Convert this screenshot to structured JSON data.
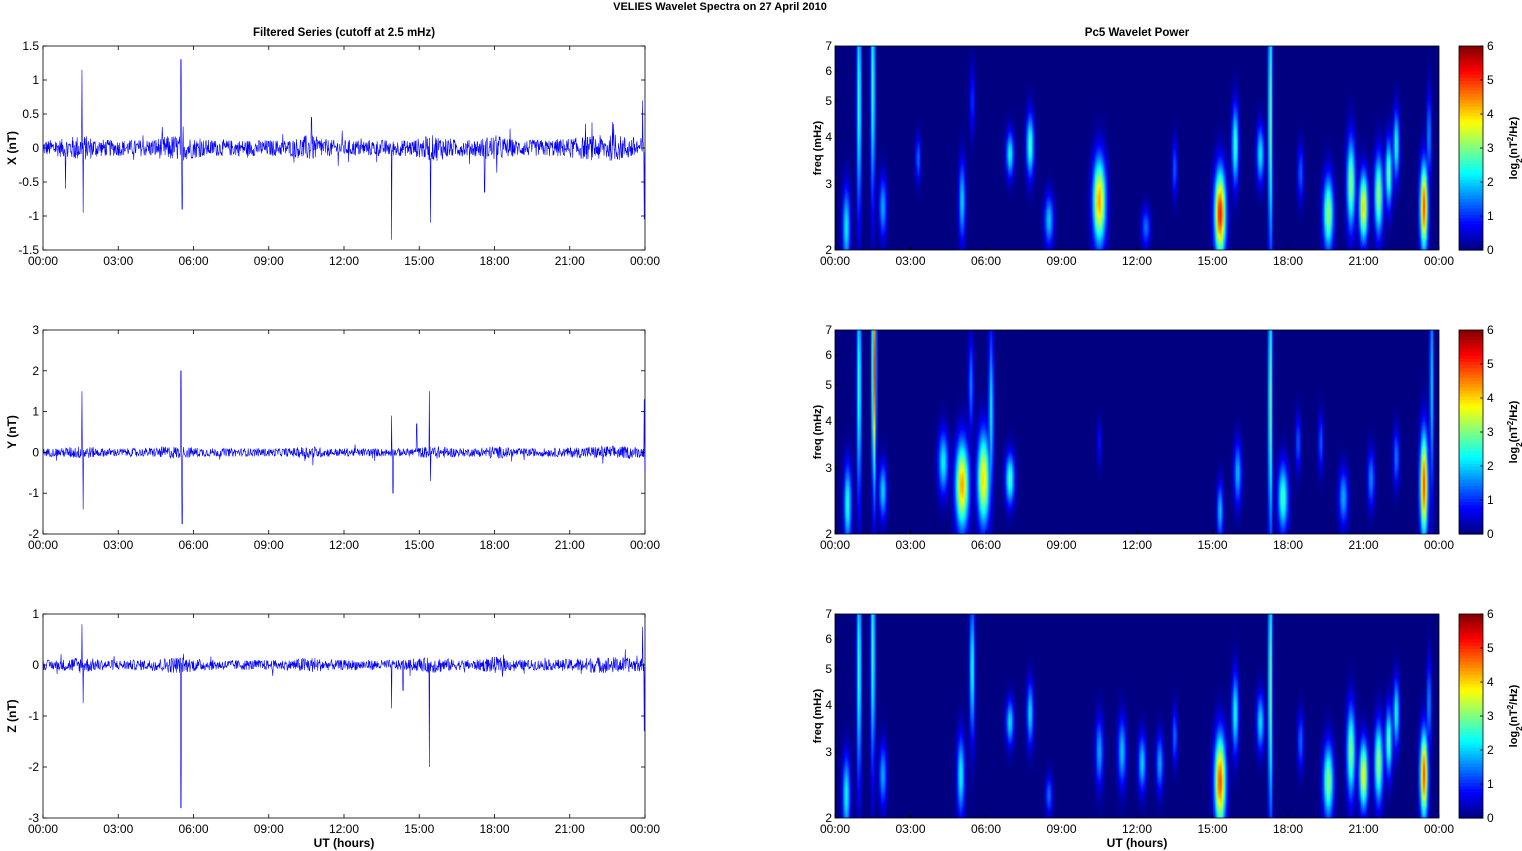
{
  "figure": {
    "title": "VELIES Wavelet Spectra on 27 April     2010"
  },
  "left_column": {
    "title": "Filtered Series (cutoff at 2.5 mHz)",
    "xlabel": "UT (hours)"
  },
  "right_column": {
    "title": "Pc5 Wavelet Power",
    "xlabel": "UT (hours)",
    "ylabel": "freq (mHz)",
    "colorbar_label": "log2(nT2/Hz)"
  },
  "chart_data": [
    {
      "type": "line",
      "name": "X",
      "ylabel": "X (nT)",
      "ylim": [
        -1.5,
        1.5
      ],
      "yticks": [
        "1.5",
        "1",
        "0.5",
        "0",
        "-0.5",
        "-1",
        "-1.5"
      ],
      "xticks": [
        "00:00",
        "03:00",
        "06:00",
        "09:00",
        "12:00",
        "15:00",
        "18:00",
        "21:00",
        "00:00"
      ],
      "xlim_hours": [
        0,
        24
      ],
      "color": "#0000ff",
      "noise_amplitude": 0.12,
      "spikes": [
        [
          0.9,
          -0.6
        ],
        [
          1.55,
          1.15
        ],
        [
          1.6,
          -0.95
        ],
        [
          5.5,
          1.3
        ],
        [
          5.55,
          -0.9
        ],
        [
          10.7,
          0.45
        ],
        [
          13.9,
          -1.35
        ],
        [
          15.45,
          -1.1
        ],
        [
          17.6,
          -0.65
        ],
        [
          23.9,
          0.7
        ],
        [
          23.97,
          -1.05
        ]
      ]
    },
    {
      "type": "line",
      "name": "Y",
      "ylabel": "Y (nT)",
      "ylim": [
        -2,
        3
      ],
      "yticks": [
        "3",
        "2",
        "1",
        "0",
        "-1",
        "-2"
      ],
      "xticks": [
        "00:00",
        "03:00",
        "06:00",
        "09:00",
        "12:00",
        "15:00",
        "18:00",
        "21:00",
        "00:00"
      ],
      "xlim_hours": [
        0,
        24
      ],
      "color": "#0000ff",
      "noise_amplitude": 0.1,
      "spikes": [
        [
          1.55,
          1.5
        ],
        [
          1.6,
          -1.4
        ],
        [
          5.5,
          2.0
        ],
        [
          5.55,
          -1.75
        ],
        [
          13.9,
          0.9
        ],
        [
          13.95,
          -1.0
        ],
        [
          14.9,
          0.7
        ],
        [
          15.4,
          1.5
        ],
        [
          15.45,
          -0.7
        ],
        [
          23.97,
          1.3
        ],
        [
          24.0,
          -0.5
        ]
      ]
    },
    {
      "type": "line",
      "name": "Z",
      "ylabel": "Z (nT)",
      "ylim": [
        -3,
        1
      ],
      "yticks": [
        "1",
        "0",
        "-1",
        "-2",
        "-3"
      ],
      "xticks": [
        "00:00",
        "03:00",
        "06:00",
        "09:00",
        "12:00",
        "15:00",
        "18:00",
        "21:00",
        "00:00"
      ],
      "xlim_hours": [
        0,
        24
      ],
      "color": "#0000ff",
      "noise_amplitude": 0.1,
      "spikes": [
        [
          1.55,
          0.8
        ],
        [
          1.6,
          -0.75
        ],
        [
          5.5,
          -2.8
        ],
        [
          13.9,
          -0.85
        ],
        [
          14.35,
          -0.5
        ],
        [
          15.4,
          -2.0
        ],
        [
          23.9,
          0.75
        ],
        [
          23.97,
          -1.3
        ]
      ]
    },
    {
      "type": "heatmap",
      "name": "X wavelet",
      "ylabel": "freq (mHz)",
      "ylim": [
        2,
        7
      ],
      "yscale": "log",
      "yticks": [
        "7",
        "6",
        "5",
        "4",
        "3",
        "2"
      ],
      "xticks": [
        "00:00",
        "03:00",
        "06:00",
        "09:00",
        "12:00",
        "15:00",
        "18:00",
        "21:00",
        "00:00"
      ],
      "clim": [
        0,
        6
      ],
      "cticks": [
        "6",
        "5",
        "4",
        "3",
        "2",
        "1",
        "0"
      ],
      "blobs": [
        [
          0.45,
          2.3,
          0.15,
          0.7,
          2.5
        ],
        [
          0.95,
          5.0,
          0.09,
          2.0,
          3.0
        ],
        [
          1.5,
          5.5,
          0.09,
          2.0,
          3.0
        ],
        [
          1.9,
          2.6,
          0.15,
          0.55,
          2.0
        ],
        [
          3.3,
          3.5,
          0.1,
          0.4,
          1.6
        ],
        [
          5.05,
          2.7,
          0.13,
          0.7,
          2.3
        ],
        [
          5.45,
          5.0,
          0.1,
          0.6,
          1.2
        ],
        [
          6.95,
          3.6,
          0.15,
          0.4,
          2.6
        ],
        [
          7.75,
          3.8,
          0.15,
          0.55,
          3.0
        ],
        [
          8.5,
          2.4,
          0.18,
          0.45,
          2.2
        ],
        [
          10.5,
          2.7,
          0.25,
          0.75,
          4.8
        ],
        [
          12.35,
          2.3,
          0.17,
          0.35,
          1.6
        ],
        [
          13.5,
          3.3,
          0.1,
          0.5,
          1.5
        ],
        [
          15.3,
          2.5,
          0.22,
          0.75,
          5.8
        ],
        [
          15.9,
          3.8,
          0.13,
          0.7,
          3.0
        ],
        [
          16.9,
          3.6,
          0.15,
          0.5,
          2.5
        ],
        [
          17.3,
          4.5,
          0.08,
          2.5,
          3.5
        ],
        [
          18.5,
          3.2,
          0.12,
          0.5,
          1.5
        ],
        [
          19.6,
          2.5,
          0.2,
          0.65,
          3.6
        ],
        [
          20.5,
          3.0,
          0.17,
          0.8,
          3.5
        ],
        [
          21.0,
          2.6,
          0.17,
          0.6,
          4.4
        ],
        [
          21.6,
          2.8,
          0.17,
          0.7,
          3.6
        ],
        [
          22.0,
          3.2,
          0.14,
          0.6,
          3.2
        ],
        [
          22.3,
          3.8,
          0.12,
          0.6,
          2.8
        ],
        [
          23.4,
          2.6,
          0.15,
          0.75,
          5.5
        ],
        [
          23.6,
          4.0,
          0.08,
          0.8,
          2.0
        ]
      ]
    },
    {
      "type": "heatmap",
      "name": "Y wavelet",
      "ylabel": "freq (mHz)",
      "ylim": [
        2,
        7
      ],
      "yscale": "log",
      "yticks": [
        "7",
        "6",
        "5",
        "4",
        "3",
        "2"
      ],
      "xticks": [
        "00:00",
        "03:00",
        "06:00",
        "09:00",
        "12:00",
        "15:00",
        "18:00",
        "21:00",
        "00:00"
      ],
      "clim": [
        0,
        6
      ],
      "cticks": [
        "6",
        "5",
        "4",
        "3",
        "2",
        "1",
        "0"
      ],
      "blobs": [
        [
          0.5,
          2.4,
          0.15,
          0.7,
          2.8
        ],
        [
          0.95,
          5.0,
          0.09,
          2.0,
          3.0
        ],
        [
          1.55,
          5.5,
          0.08,
          2.0,
          5.5
        ],
        [
          1.9,
          2.6,
          0.15,
          0.5,
          2.3
        ],
        [
          4.3,
          3.1,
          0.2,
          0.55,
          2.5
        ],
        [
          5.05,
          2.7,
          0.26,
          0.75,
          4.8
        ],
        [
          5.9,
          2.8,
          0.24,
          0.8,
          4.4
        ],
        [
          5.4,
          5.0,
          0.1,
          0.8,
          1.8
        ],
        [
          6.2,
          4.2,
          0.1,
          1.5,
          2.5
        ],
        [
          6.95,
          2.8,
          0.18,
          0.45,
          3.0
        ],
        [
          10.5,
          3.5,
          0.08,
          0.4,
          1.0
        ],
        [
          15.3,
          2.3,
          0.12,
          0.5,
          2.2
        ],
        [
          16.0,
          2.9,
          0.15,
          0.55,
          2.1
        ],
        [
          17.3,
          4.5,
          0.08,
          2.5,
          3.5
        ],
        [
          17.8,
          2.5,
          0.2,
          0.6,
          3.0
        ],
        [
          18.4,
          3.5,
          0.1,
          0.5,
          1.5
        ],
        [
          19.3,
          3.5,
          0.1,
          0.5,
          1.5
        ],
        [
          20.2,
          2.5,
          0.18,
          0.5,
          2.0
        ],
        [
          21.3,
          2.8,
          0.14,
          0.5,
          1.8
        ],
        [
          22.3,
          3.2,
          0.12,
          0.5,
          1.7
        ],
        [
          23.4,
          2.7,
          0.15,
          0.9,
          5.5
        ],
        [
          23.7,
          5.0,
          0.07,
          2.0,
          2.5
        ]
      ]
    },
    {
      "type": "heatmap",
      "name": "Z wavelet",
      "ylabel": "freq (mHz)",
      "ylim": [
        2,
        7
      ],
      "yscale": "log",
      "yticks": [
        "7",
        "6",
        "5",
        "4",
        "3",
        "2"
      ],
      "xticks": [
        "00:00",
        "03:00",
        "06:00",
        "09:00",
        "12:00",
        "15:00",
        "18:00",
        "21:00",
        "00:00"
      ],
      "clim": [
        0,
        6
      ],
      "cticks": [
        "6",
        "5",
        "4",
        "3",
        "2",
        "1",
        "0"
      ],
      "blobs": [
        [
          0.45,
          2.3,
          0.15,
          0.7,
          2.6
        ],
        [
          0.95,
          5.0,
          0.09,
          2.0,
          3.0
        ],
        [
          1.5,
          5.5,
          0.09,
          2.0,
          3.0
        ],
        [
          1.9,
          2.6,
          0.15,
          0.55,
          2.0
        ],
        [
          5.0,
          2.6,
          0.15,
          0.7,
          2.6
        ],
        [
          5.45,
          5.0,
          0.1,
          1.2,
          2.8
        ],
        [
          6.95,
          3.6,
          0.15,
          0.4,
          2.4
        ],
        [
          7.75,
          3.8,
          0.13,
          0.55,
          2.4
        ],
        [
          8.5,
          2.3,
          0.13,
          0.35,
          1.6
        ],
        [
          10.5,
          3.0,
          0.15,
          0.6,
          2.0
        ],
        [
          11.4,
          3.0,
          0.16,
          0.6,
          2.2
        ],
        [
          12.2,
          2.8,
          0.15,
          0.5,
          2.3
        ],
        [
          12.9,
          2.8,
          0.14,
          0.5,
          2.0
        ],
        [
          13.5,
          3.3,
          0.1,
          0.5,
          1.6
        ],
        [
          15.3,
          2.5,
          0.22,
          0.8,
          5.4
        ],
        [
          15.9,
          3.8,
          0.13,
          0.7,
          2.7
        ],
        [
          16.9,
          3.6,
          0.15,
          0.5,
          2.4
        ],
        [
          17.3,
          4.5,
          0.08,
          2.5,
          3.5
        ],
        [
          18.5,
          3.2,
          0.12,
          0.5,
          1.6
        ],
        [
          19.6,
          2.5,
          0.2,
          0.65,
          3.5
        ],
        [
          20.5,
          3.0,
          0.17,
          0.8,
          3.4
        ],
        [
          21.0,
          2.6,
          0.17,
          0.6,
          4.2
        ],
        [
          21.6,
          2.8,
          0.17,
          0.7,
          3.6
        ],
        [
          22.0,
          3.2,
          0.14,
          0.6,
          3.1
        ],
        [
          22.3,
          3.8,
          0.12,
          0.6,
          2.7
        ],
        [
          23.4,
          2.6,
          0.15,
          0.75,
          5.5
        ],
        [
          23.6,
          4.0,
          0.08,
          0.8,
          2.0
        ]
      ]
    }
  ]
}
